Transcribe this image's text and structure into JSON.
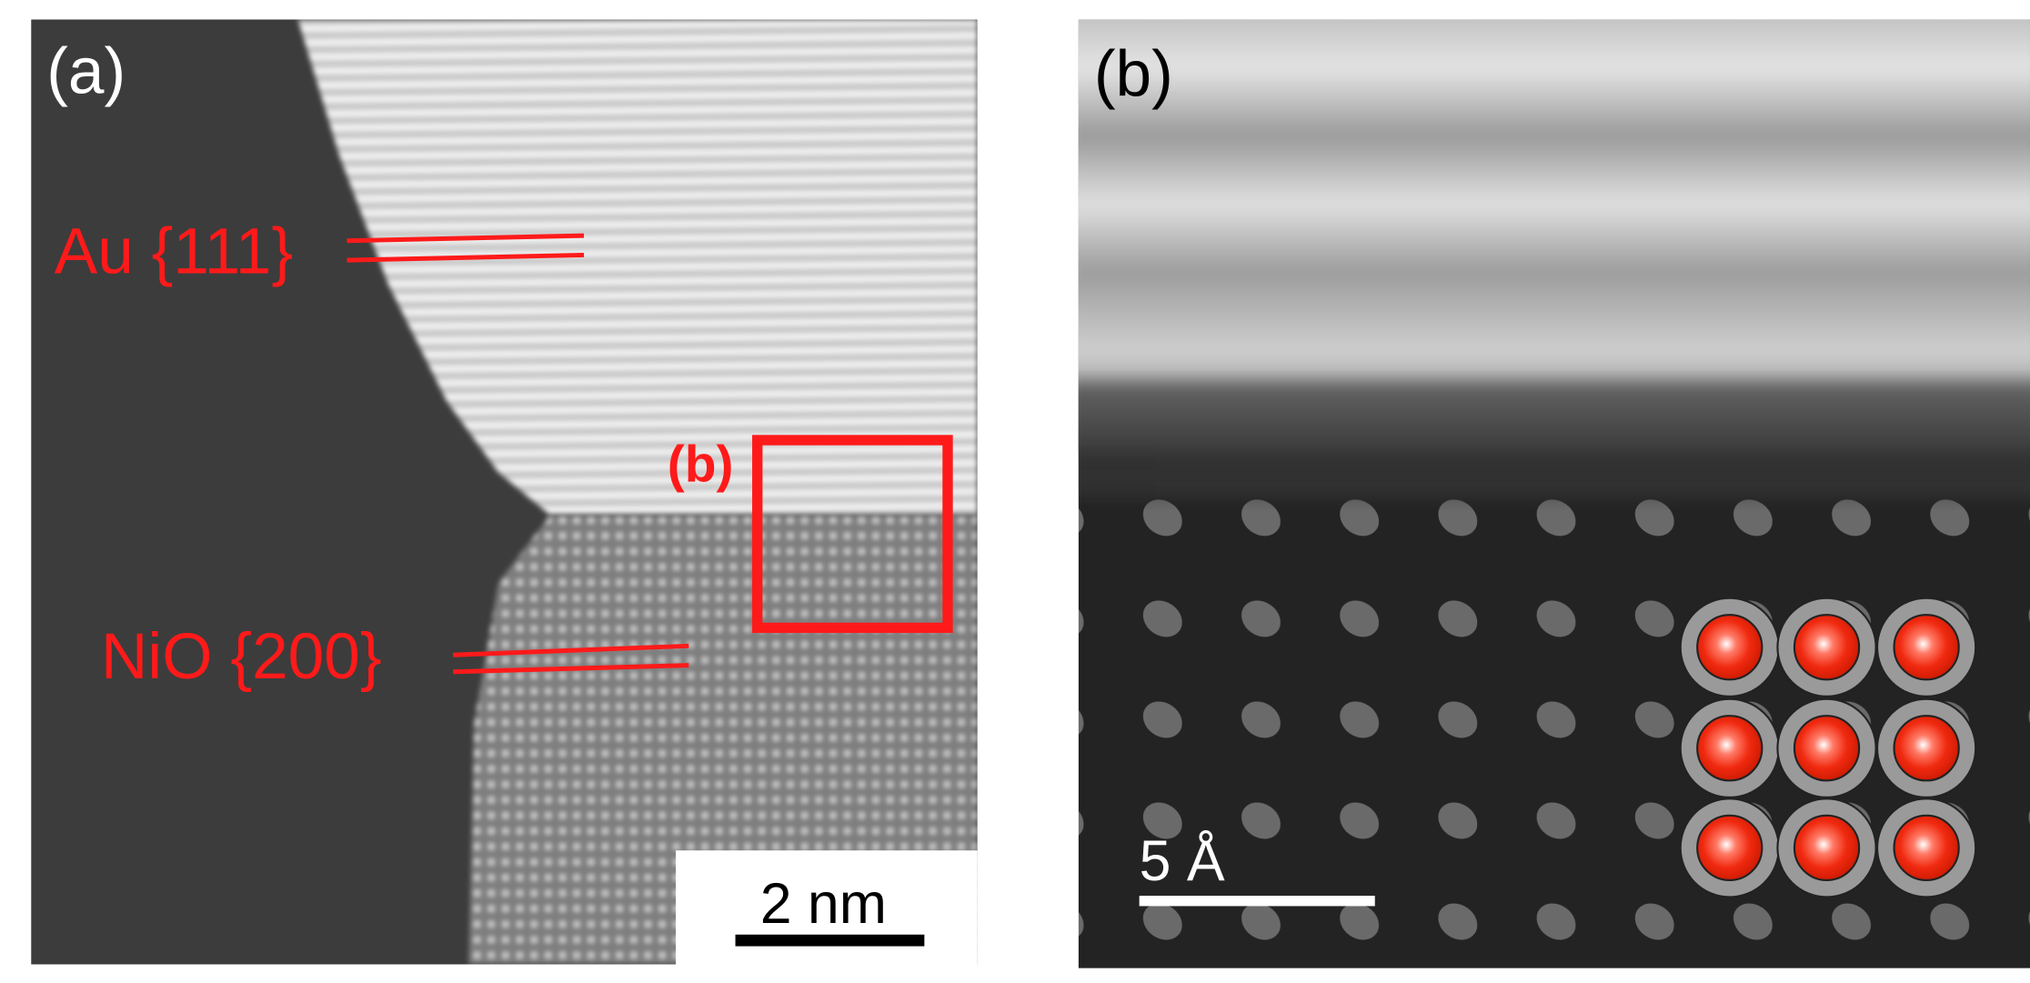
{
  "panel_a": {
    "label": "(a)",
    "au_label": "Au {111}",
    "nio_label": "NiO {200}",
    "box_label": "(b)",
    "scale_bar": "2 nm"
  },
  "panel_b": {
    "label": "(b)",
    "scale_bar": "5 Å"
  }
}
